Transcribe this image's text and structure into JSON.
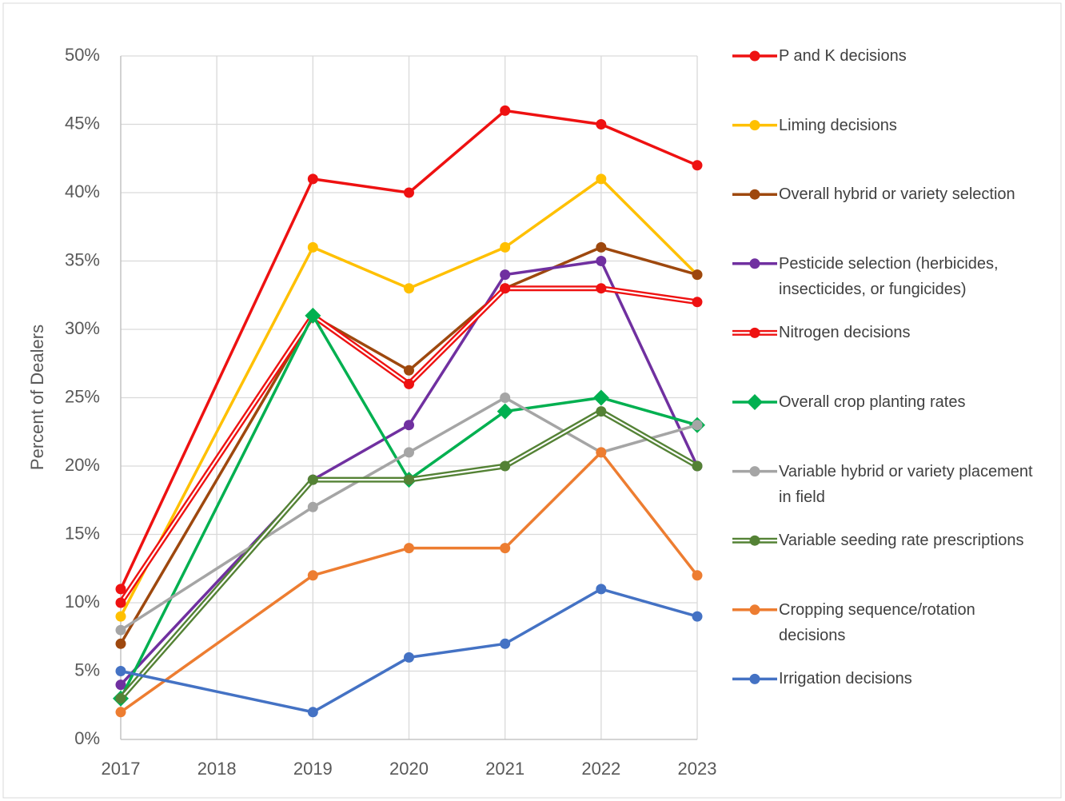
{
  "chart_data": {
    "type": "line",
    "y_label": "Percent of Dealers",
    "x": [
      2017,
      2019,
      2020,
      2021,
      2022,
      2023
    ],
    "xlim": [
      2017,
      2023
    ],
    "xticks": [
      2017,
      2018,
      2019,
      2020,
      2021,
      2022,
      2023
    ],
    "ylim": [
      0,
      50
    ],
    "yticks": [
      {
        "value": 0,
        "label": "0%"
      },
      {
        "value": 5,
        "label": "5%"
      },
      {
        "value": 10,
        "label": "10%"
      },
      {
        "value": 15,
        "label": "15%"
      },
      {
        "value": 20,
        "label": "20%"
      },
      {
        "value": 25,
        "label": "25%"
      },
      {
        "value": 30,
        "label": "30%"
      },
      {
        "value": 35,
        "label": "35%"
      },
      {
        "value": 40,
        "label": "40%"
      },
      {
        "value": 45,
        "label": "45%"
      },
      {
        "value": 50,
        "label": "50%"
      }
    ],
    "grid": true,
    "legend": "right",
    "series": [
      {
        "name": "P and K decisions",
        "color": "#ee1111",
        "marker": "circle",
        "values": [
          11,
          41,
          40,
          46,
          45,
          42
        ]
      },
      {
        "name": "Liming decisions",
        "color": "#ffc000",
        "marker": "circle",
        "values": [
          9,
          36,
          33,
          36,
          41,
          34
        ]
      },
      {
        "name": "Overall hybrid or variety selection",
        "color": "#9e480e",
        "marker": "circle",
        "values": [
          7,
          31,
          27,
          33,
          36,
          34
        ]
      },
      {
        "name": "Pesticide selection (herbicides, insecticides, or fungicides)",
        "color": "#7030a0",
        "marker": "circle",
        "values": [
          4,
          19,
          23,
          34,
          35,
          20
        ]
      },
      {
        "name": "Nitrogen decisions",
        "color": "#ee1111",
        "marker": "circle",
        "line_style": "double",
        "values": [
          10,
          31,
          26,
          33,
          33,
          32
        ]
      },
      {
        "name": "Overall crop planting rates",
        "color": "#00b050",
        "marker": "diamond",
        "values": [
          3,
          31,
          19,
          24,
          25,
          23
        ]
      },
      {
        "name": "Variable hybrid or variety placement in field",
        "color": "#a5a5a5",
        "marker": "circle",
        "values": [
          8,
          17,
          21,
          25,
          21,
          23
        ]
      },
      {
        "name": "Variable seeding rate prescriptions",
        "color": "#548235",
        "marker": "circle",
        "line_style": "double",
        "values": [
          3,
          19,
          19,
          20,
          24,
          20
        ]
      },
      {
        "name": "Cropping sequence/rotation decisions",
        "color": "#ed7d31",
        "marker": "circle",
        "values": [
          2,
          12,
          14,
          14,
          21,
          12
        ]
      },
      {
        "name": "Irrigation decisions",
        "color": "#4472c4",
        "marker": "circle",
        "values": [
          5,
          2,
          6,
          7,
          11,
          9
        ]
      }
    ]
  }
}
